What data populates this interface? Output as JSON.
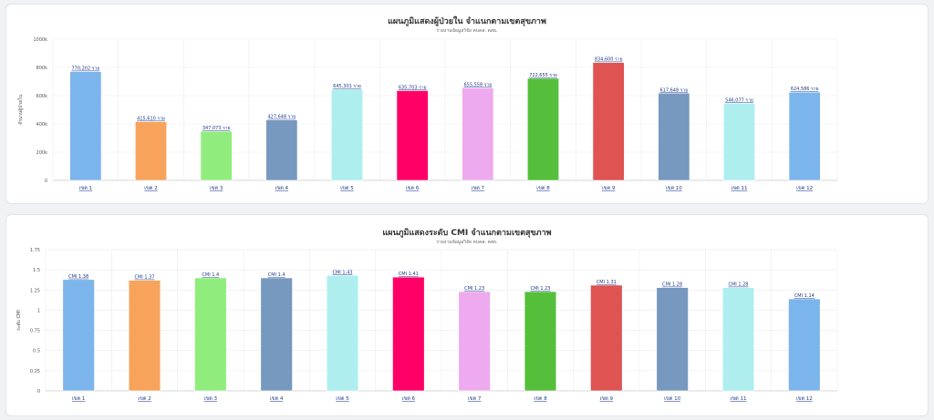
{
  "chart_data": [
    {
      "type": "bar",
      "title": "แผนภูมิแสดงผู้ป่วยใน จำแนกตามเขตสุขภาพ",
      "subtitle": "รายงานข้อมูลวิจัย คบคส. คสธ.",
      "ylabel": "จำนวนผู้ป่วยใน",
      "xlabel": "",
      "ylim": [
        0,
        1000000
      ],
      "yticks": [
        "0",
        "200k",
        "400k",
        "600k",
        "800k",
        "1000k"
      ],
      "grid": true,
      "categories": [
        "เขต 1",
        "เขต 2",
        "เขต 3",
        "เขต 4",
        "เขต 5",
        "เขต 6",
        "เขต 7",
        "เขต 8",
        "เขต 9",
        "เขต 10",
        "เขต 11",
        "เขต 12"
      ],
      "values": [
        770202,
        415610,
        347073,
        427648,
        645301,
        635703,
        655558,
        722655,
        834600,
        617648,
        546077,
        624586
      ],
      "data_labels": [
        "770,202 ราย",
        "415,610 ราย",
        "347,073 ราย",
        "427,648 ราย",
        "645,301 ราย",
        "635,703 ราย",
        "655,558 ราย",
        "722,655 ราย",
        "834,600 ราย",
        "617,648 ราย",
        "546,077 ราย",
        "624,586 ราย"
      ],
      "colors": [
        "#7cb5ec",
        "#f7a35c",
        "#90ed7d",
        "#7798bf",
        "#aeeeee",
        "#ff0066",
        "#eeaaee",
        "#55bf3b",
        "#df5353",
        "#7798bf",
        "#aeeeee",
        "#7cb5ec"
      ]
    },
    {
      "type": "bar",
      "title": "แผนภูมิแสดงระดับ CMI จำแนกตามเขตสุขภาพ",
      "subtitle": "รายงานข้อมูลวิจัย คบคส. คสธ.",
      "ylabel": "ระดับ CMI",
      "xlabel": "",
      "ylim": [
        0,
        1.75
      ],
      "yticks": [
        "0",
        "0.25",
        "0.5",
        "0.75",
        "1",
        "1.25",
        "1.5",
        "1.75"
      ],
      "grid": true,
      "categories": [
        "เขต 1",
        "เขต 2",
        "เขต 3",
        "เขต 4",
        "เขต 5",
        "เขต 6",
        "เขต 7",
        "เขต 8",
        "เขต 9",
        "เขต 10",
        "เขต 11",
        "เขต 12"
      ],
      "values": [
        1.38,
        1.37,
        1.4,
        1.4,
        1.43,
        1.41,
        1.23,
        1.23,
        1.31,
        1.28,
        1.28,
        1.14
      ],
      "data_labels": [
        "CMI 1.38",
        "CMI 1.37",
        "CMI 1.4",
        "CMI 1.4",
        "CMI 1.43",
        "CMI 1.41",
        "CMI 1.23",
        "CMI 1.23",
        "CMI 1.31",
        "CMI 1.28",
        "CMI 1.28",
        "CMI 1.14"
      ],
      "colors": [
        "#7cb5ec",
        "#f7a35c",
        "#90ed7d",
        "#7798bf",
        "#aeeeee",
        "#ff0066",
        "#eeaaee",
        "#55bf3b",
        "#df5353",
        "#7798bf",
        "#aeeeee",
        "#7cb5ec"
      ]
    }
  ]
}
